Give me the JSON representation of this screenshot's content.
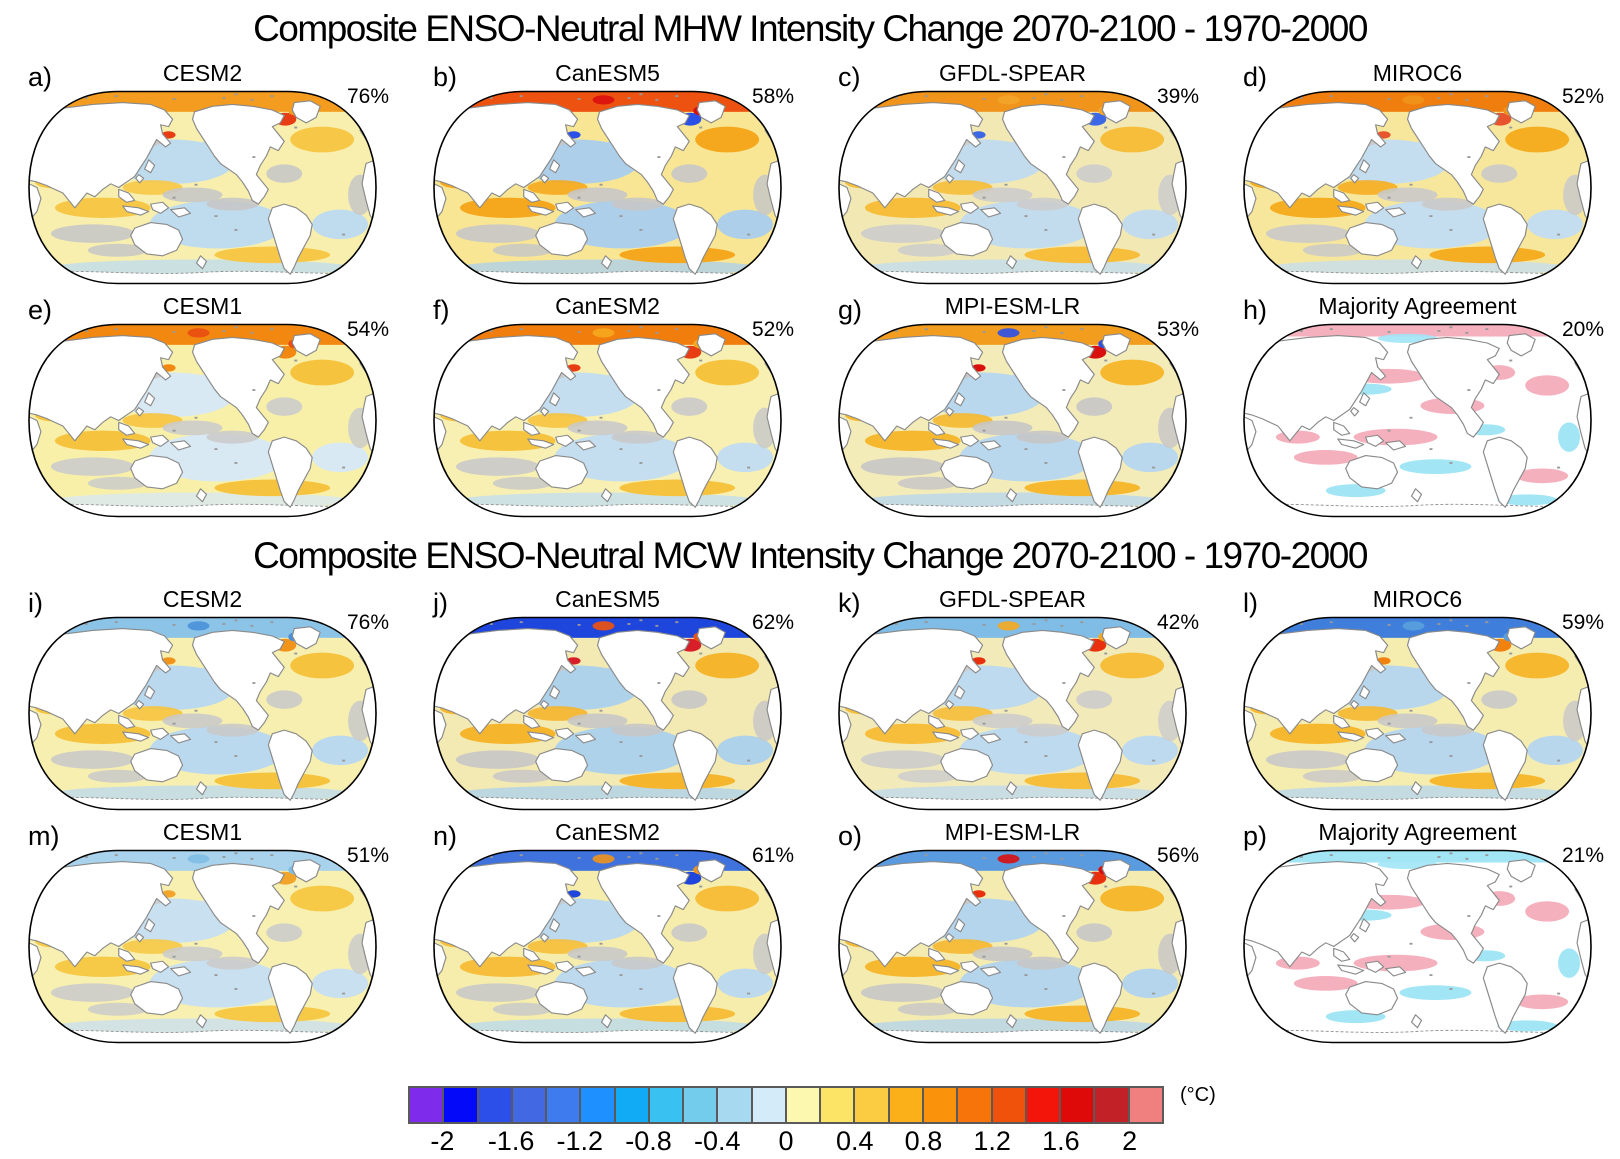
{
  "figure_titles": [
    "Composite ENSO-Neutral MHW Intensity Change 2070-2100 - 1970-2000",
    "Composite ENSO-Neutral MCW Intensity Change 2070-2100 - 1970-2000"
  ],
  "panels": [
    {
      "label": "a)",
      "model": "CESM2",
      "pct": "76%",
      "map": {
        "type": "model",
        "base": "#F8EFAE",
        "gyre": "#BFDCEE",
        "band": "#F7C847",
        "gray": "#C7C7C7",
        "arctic": "#F39C1F",
        "spot1": "#E83C12",
        "spot2": "#F39C1F"
      }
    },
    {
      "label": "b)",
      "model": "CanESM5",
      "pct": "58%",
      "map": {
        "type": "model",
        "base": "#F8E694",
        "gyre": "#AECFEA",
        "band": "#F5A81D",
        "gray": "#C7C7C7",
        "arctic": "#EE5211",
        "spot1": "#2B50E8",
        "spot2": "#D90F0F"
      }
    },
    {
      "label": "c)",
      "model": "GFDL-SPEAR",
      "pct": "39%",
      "map": {
        "type": "model",
        "base": "#F2E8B4",
        "gyre": "#C2DCEE",
        "band": "#F6BE3A",
        "gray": "#CCCCCC",
        "arctic": "#F0941C",
        "spot1": "#3C68E8",
        "spot2": "#F2A52A"
      }
    },
    {
      "label": "d)",
      "model": "MIROC6",
      "pct": "52%",
      "map": {
        "type": "model",
        "base": "#F7E79C",
        "gyre": "#C5DEEF",
        "band": "#F5AE22",
        "gray": "#C9C9C9",
        "arctic": "#EF7E0E",
        "spot1": "#E8542E",
        "spot2": "#F0941C"
      }
    },
    {
      "label": "e)",
      "model": "CESM1",
      "pct": "54%",
      "map": {
        "type": "model",
        "base": "#F8F0A8",
        "gyre": "#D8E9F4",
        "band": "#F6C33E",
        "gray": "#CBCBCB",
        "arctic": "#F2880F",
        "spot1": "#F2880F",
        "spot2": "#E84C10"
      }
    },
    {
      "label": "f)",
      "model": "CanESM2",
      "pct": "52%",
      "map": {
        "type": "model",
        "base": "#F8F0B2",
        "gyre": "#C4DEEF",
        "band": "#F6C33E",
        "gray": "#C9C9C9",
        "arctic": "#F07D0C",
        "spot1": "#E83C12",
        "spot2": "#F5A81D"
      }
    },
    {
      "label": "g)",
      "model": "MPI-ESM-LR",
      "pct": "53%",
      "map": {
        "type": "model",
        "base": "#F4ECB8",
        "gyre": "#B9D7ED",
        "band": "#F5B82F",
        "gray": "#C7C7C7",
        "arctic": "#F29D1E",
        "spot1": "#D90F0F",
        "spot2": "#2B50E8"
      }
    },
    {
      "label": "h)",
      "model": "Majority Agreement",
      "pct": "20%",
      "map": {
        "type": "agreement",
        "pos": "#F5B0BE",
        "neg": "#A2E6F6",
        "arctic": "#F5B0BE"
      }
    },
    {
      "label": "i)",
      "model": "CESM2",
      "pct": "76%",
      "map": {
        "type": "model",
        "base": "#F7EFB0",
        "gyre": "#BBD9EE",
        "band": "#F6C33E",
        "gray": "#C9C9C9",
        "arctic": "#8CC4E8",
        "spot1": "#F0941C",
        "spot2": "#4A90D8"
      }
    },
    {
      "label": "j)",
      "model": "CanESM5",
      "pct": "62%",
      "map": {
        "type": "model",
        "base": "#F3E9B2",
        "gyre": "#AFD2EB",
        "band": "#F5B52C",
        "gray": "#C7C7C7",
        "arctic": "#1E46DC",
        "spot1": "#D81E28",
        "spot2": "#F0520B"
      }
    },
    {
      "label": "k)",
      "model": "GFDL-SPEAR",
      "pct": "42%",
      "map": {
        "type": "model",
        "base": "#F2EAB9",
        "gyre": "#BEDAEE",
        "band": "#F6BE3A",
        "gray": "#CCCCCC",
        "arctic": "#7FBCE6",
        "spot1": "#E8300E",
        "spot2": "#F5A81D"
      }
    },
    {
      "label": "l)",
      "model": "MIROC6",
      "pct": "59%",
      "map": {
        "type": "model",
        "base": "#F5ECB0",
        "gyre": "#B8D7ED",
        "band": "#F5B82F",
        "gray": "#C9C9C9",
        "arctic": "#3F7EDB",
        "spot1": "#F0820D",
        "spot2": "#5AA0DD"
      }
    },
    {
      "label": "m)",
      "model": "CESM1",
      "pct": "51%",
      "map": {
        "type": "model",
        "base": "#F8F0B0",
        "gyre": "#C9E0F0",
        "band": "#F6C947",
        "gray": "#CBCBCB",
        "arctic": "#A9D2EC",
        "spot1": "#F2A52A",
        "spot2": "#7FBCE6"
      }
    },
    {
      "label": "n)",
      "model": "CanESM2",
      "pct": "61%",
      "map": {
        "type": "model",
        "base": "#F6EDAC",
        "gyre": "#BCD9EE",
        "band": "#F6BE3A",
        "gray": "#C9C9C9",
        "arctic": "#4072DE",
        "spot1": "#1E46DC",
        "spot2": "#F0941C"
      }
    },
    {
      "label": "o)",
      "model": "MPI-ESM-LR",
      "pct": "56%",
      "map": {
        "type": "model",
        "base": "#F4EBB0",
        "gyre": "#B5D5EC",
        "band": "#F5B82F",
        "gray": "#C7C7C7",
        "arctic": "#5A9ADF",
        "spot1": "#E8300E",
        "spot2": "#D90F0F"
      }
    },
    {
      "label": "p)",
      "model": "Majority Agreement",
      "pct": "21%",
      "map": {
        "type": "agreement",
        "pos": "#F5B0BE",
        "neg": "#A2E6F6",
        "arctic": "#A2E6F6"
      }
    }
  ],
  "colorbar": {
    "tick_labels": [
      "-2",
      "-1.6",
      "-1.2",
      "-0.8",
      "-0.4",
      "0",
      "0.4",
      "0.8",
      "1.2",
      "1.6",
      "2"
    ],
    "unit": "(°C)",
    "border_color": "#5a5a5a",
    "cell_colors": [
      "#7E2BEB",
      "#0409FA",
      "#2C4FE9",
      "#4268E3",
      "#3E7BEF",
      "#1E90FF",
      "#10AAF5",
      "#39C2F1",
      "#73CCEC",
      "#A7D9F1",
      "#D4EBF9",
      "#FDF8B0",
      "#FCE467",
      "#FBCB41",
      "#FBAF19",
      "#FB920B",
      "#F67409",
      "#F0520B",
      "#F3150A",
      "#DE0909",
      "#C32128",
      "#F08080"
    ]
  },
  "chart_data": {
    "type": "heatmap",
    "title": "Composite ENSO-Neutral MHW / MCW Intensity Change 2070-2100 - 1970-2000",
    "sections": [
      {
        "title": "Composite ENSO-Neutral MHW Intensity Change 2070-2100 - 1970-2000",
        "panels": [
          {
            "label": "a",
            "model": "CESM2",
            "agreement_pct": 76
          },
          {
            "label": "b",
            "model": "CanESM5",
            "agreement_pct": 58
          },
          {
            "label": "c",
            "model": "GFDL-SPEAR",
            "agreement_pct": 39
          },
          {
            "label": "d",
            "model": "MIROC6",
            "agreement_pct": 52
          },
          {
            "label": "e",
            "model": "CESM1",
            "agreement_pct": 54
          },
          {
            "label": "f",
            "model": "CanESM2",
            "agreement_pct": 52
          },
          {
            "label": "g",
            "model": "MPI-ESM-LR",
            "agreement_pct": 53
          },
          {
            "label": "h",
            "model": "Majority Agreement",
            "agreement_pct": 20
          }
        ]
      },
      {
        "title": "Composite ENSO-Neutral MCW Intensity Change 2070-2100 - 1970-2000",
        "panels": [
          {
            "label": "i",
            "model": "CESM2",
            "agreement_pct": 76
          },
          {
            "label": "j",
            "model": "CanESM5",
            "agreement_pct": 62
          },
          {
            "label": "k",
            "model": "GFDL-SPEAR",
            "agreement_pct": 42
          },
          {
            "label": "l",
            "model": "MIROC6",
            "agreement_pct": 59
          },
          {
            "label": "m",
            "model": "CESM1",
            "agreement_pct": 51
          },
          {
            "label": "n",
            "model": "CanESM2",
            "agreement_pct": 61
          },
          {
            "label": "o",
            "model": "MPI-ESM-LR",
            "agreement_pct": 56
          },
          {
            "label": "p",
            "model": "Majority Agreement",
            "agreement_pct": 21
          }
        ]
      }
    ],
    "colorbar": {
      "ticks": [
        -2,
        -1.6,
        -1.2,
        -0.8,
        -0.4,
        0,
        0.4,
        0.8,
        1.2,
        1.6,
        2
      ],
      "unit": "°C",
      "cell_width": 0.2,
      "range_shown": [
        -2.2,
        2.2
      ],
      "n_cells": 22,
      "legend_position": "bottom"
    },
    "projection": "Robinson, Pacific-centered",
    "grid": false
  }
}
